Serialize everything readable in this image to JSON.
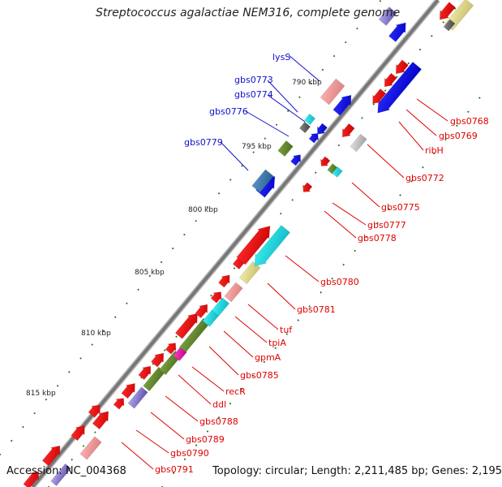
{
  "title": "Streptococcus agalactiae NEM316, complete genome",
  "footer": {
    "accession": "Accession: NC_004368",
    "stats": "Topology: circular; Length: 2,211,485 bp; Genes: 2,195"
  },
  "scale_labels": [
    "790 kbp",
    "795 kbp",
    "800 kbp",
    "805 kbp",
    "810 kbp",
    "815 kbp"
  ],
  "labels_left": [
    "lysS",
    "gbs0773",
    "gbs0774",
    "gbs0776",
    "gbs0779"
  ],
  "labels_right": [
    "gbs0768",
    "gbs0769",
    "ribH",
    "gbs0772",
    "gbs0775",
    "gbs0777",
    "gbs0778",
    "gbs0780",
    "gbs0781",
    "tuf",
    "tpiA",
    "gpmA",
    "gbs0785",
    "recR",
    "ddl",
    "gbs0788",
    "gbs0789",
    "gbs0790",
    "gbs0791"
  ],
  "colors": {
    "backbone": "#7a7a7a",
    "left_label": "#1010cc",
    "right_label": "#e00000",
    "tick": "#1a7a1a"
  }
}
